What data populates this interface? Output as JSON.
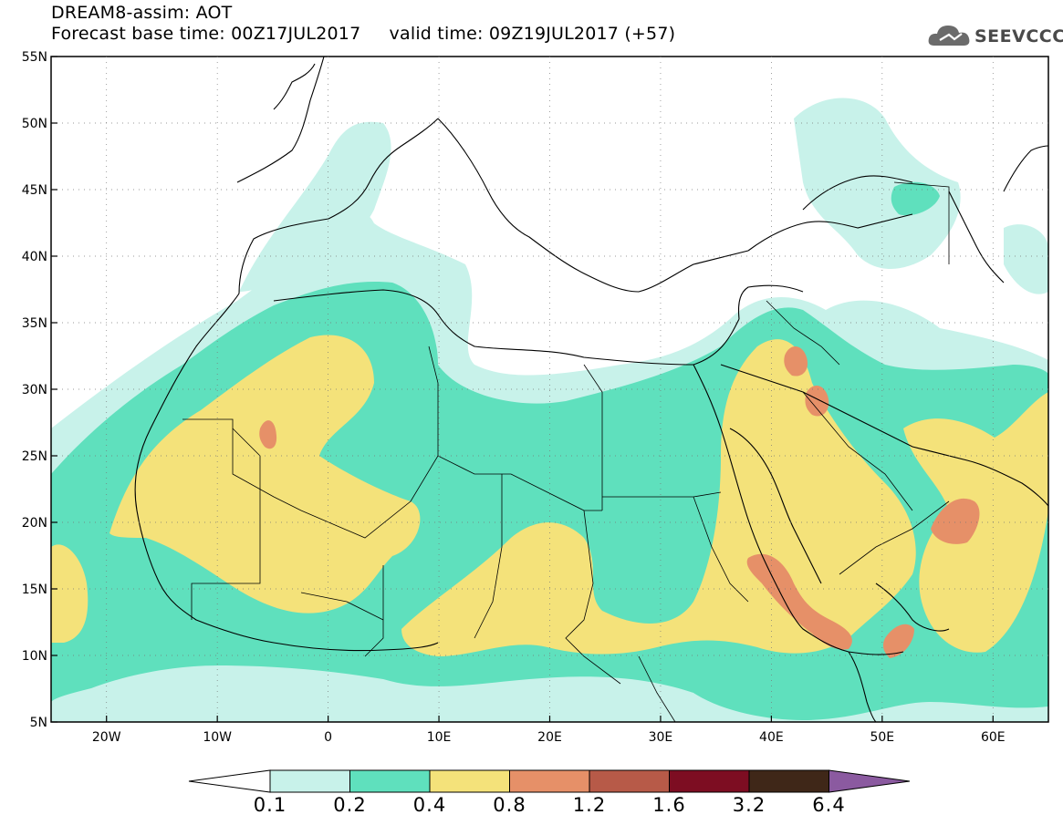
{
  "header": {
    "title": "DREAM8-assim: AOT",
    "subtitle": "Forecast base time: 00Z17JUL2017     valid time: 09Z19JUL2017 (+57)",
    "logo_text": "SEEVCCC"
  },
  "map": {
    "lon_range": [
      -25,
      65
    ],
    "lat_range": [
      5,
      55
    ],
    "x_ticks": [
      "20W",
      "10W",
      "0",
      "10E",
      "20E",
      "30E",
      "40E",
      "50E",
      "60E"
    ],
    "y_ticks": [
      "55N",
      "50N",
      "45N",
      "40N",
      "35N",
      "30N",
      "25N",
      "20N",
      "15N",
      "10N",
      "5N"
    ]
  },
  "colorbar": {
    "labels": [
      "0.1",
      "0.2",
      "0.4",
      "0.8",
      "1.2",
      "1.6",
      "3.2",
      "6.4"
    ],
    "colors": {
      "c0": "#c8f2ea",
      "c1": "#5fe0bd",
      "c2": "#f4e27a",
      "c3": "#e69068",
      "c4": "#b75a48",
      "c5": "#7d0d22",
      "c6": "#3f2718",
      "c7": "#8b5aa0"
    }
  }
}
